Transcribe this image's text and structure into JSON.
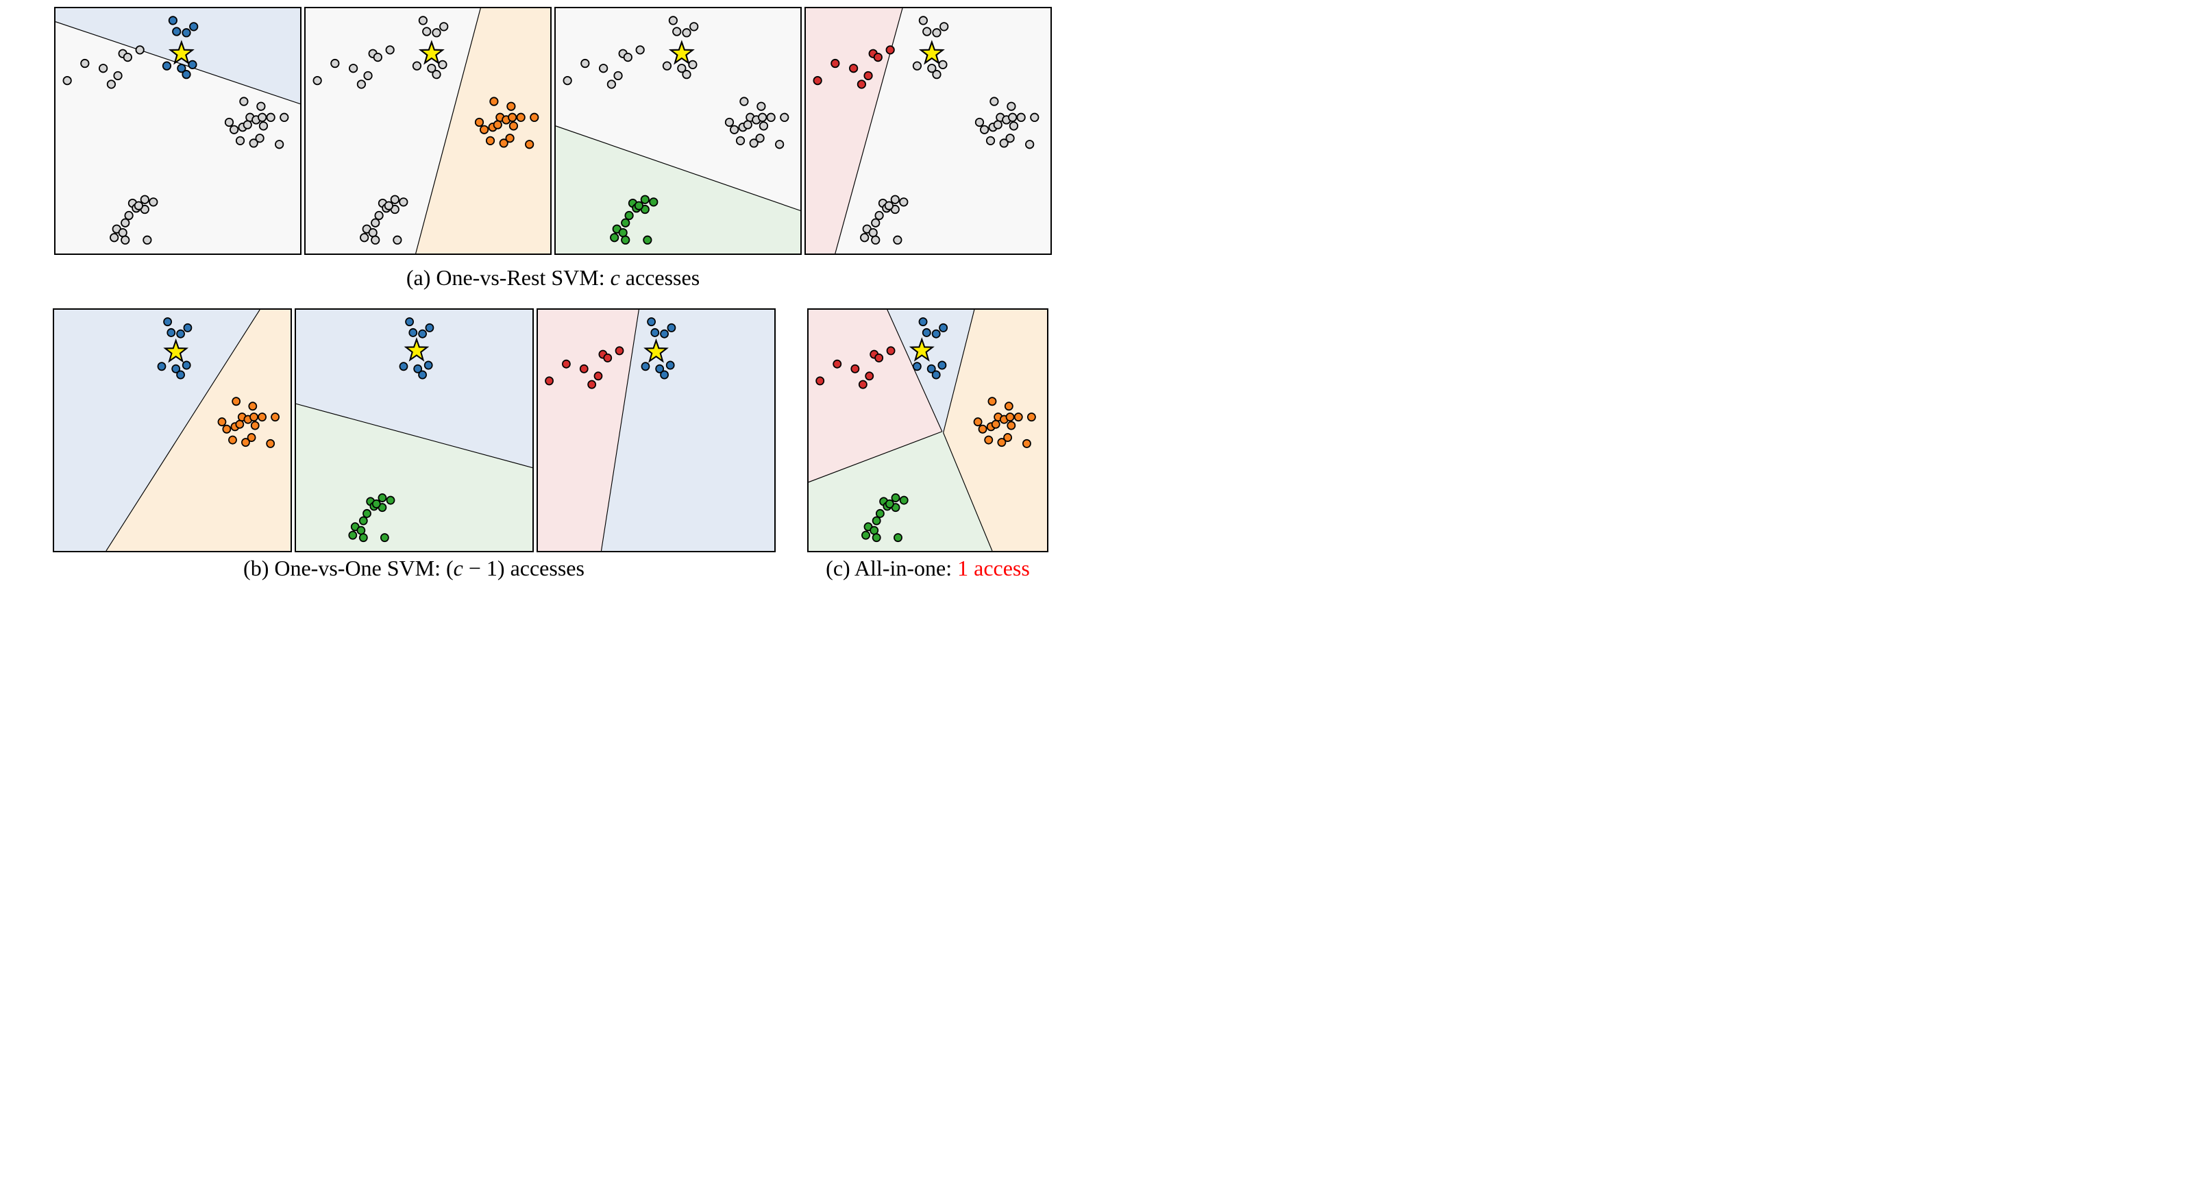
{
  "colors": {
    "point": {
      "blue": "#2e75b4",
      "orange": "#f8821f",
      "green": "#2fa42f",
      "red": "#d62f2f",
      "gray": "#d4d4d4"
    },
    "region": {
      "blue": "#e3eaf4",
      "orange": "#fdeeda",
      "green": "#e7f2e6",
      "red": "#f9e6e6",
      "none": "#f8f8f8"
    },
    "star_fill": "#ffee00",
    "outline": "#000000",
    "caption_highlight": "#ff0000"
  },
  "style": {
    "dot_radius": 1.6,
    "dot_stroke": 0.5,
    "line_stroke": 0.33,
    "star_outer": 4.7,
    "star_inner": 1.9,
    "star_stroke": 0.6
  },
  "chart_data": {
    "type": "scatter",
    "coordinate_system": "percent of each panel, x rightward, y downward",
    "clusters": {
      "top": [
        [
          48,
          5
        ],
        [
          49.5,
          9.5
        ],
        [
          53.5,
          10
        ],
        [
          56.5,
          7.5
        ],
        [
          45.5,
          23.5
        ],
        [
          51.5,
          24.5
        ],
        [
          56,
          23
        ],
        [
          53.5,
          27
        ]
      ],
      "left": [
        [
          4.8,
          29.5
        ],
        [
          12,
          22.5
        ],
        [
          19.5,
          24.5
        ],
        [
          25.5,
          27.5
        ],
        [
          22.8,
          31
        ],
        [
          27.5,
          18.5
        ],
        [
          29.5,
          20
        ],
        [
          34.5,
          17
        ]
      ],
      "right": [
        [
          77,
          38
        ],
        [
          84,
          40
        ],
        [
          71,
          46.5
        ],
        [
          73,
          49.5
        ],
        [
          76.5,
          48.5
        ],
        [
          79.5,
          44.5
        ],
        [
          82,
          45.5
        ],
        [
          84.5,
          44.5
        ],
        [
          88,
          44.5
        ],
        [
          85,
          48
        ],
        [
          93.5,
          44.5
        ],
        [
          75.5,
          54
        ],
        [
          81,
          55
        ],
        [
          83.5,
          53
        ],
        [
          91.5,
          55.5
        ],
        [
          78.5,
          47.5
        ]
      ],
      "bottom": [
        [
          31.5,
          79.5
        ],
        [
          36.5,
          78
        ],
        [
          40,
          79
        ],
        [
          33,
          81.5
        ],
        [
          36.5,
          82
        ],
        [
          34,
          80.5
        ],
        [
          30,
          84.5
        ],
        [
          28.5,
          87.5
        ],
        [
          25,
          90
        ],
        [
          27.5,
          91.5
        ],
        [
          24,
          93.5
        ],
        [
          28.5,
          94.5
        ],
        [
          37.5,
          94.5
        ]
      ]
    },
    "panels": [
      {
        "id": "a1",
        "group": "a",
        "name": "one-vs-rest-blue",
        "regions": [
          {
            "color": "blue",
            "pts": [
              [
                0,
                0
              ],
              [
                100,
                0
              ],
              [
                100,
                39
              ],
              [
                0,
                5.5
              ]
            ]
          }
        ],
        "lines": [
          [
            0,
            5.5,
            100,
            39
          ]
        ],
        "dots": [
          {
            "cluster": "top",
            "color": "blue"
          },
          {
            "cluster": "left",
            "color": "gray"
          },
          {
            "cluster": "right",
            "color": "gray"
          },
          {
            "cluster": "bottom",
            "color": "gray"
          }
        ],
        "star": [
          51.5,
          18.5
        ]
      },
      {
        "id": "a2",
        "group": "a",
        "name": "one-vs-rest-orange",
        "regions": [
          {
            "color": "orange",
            "pts": [
              [
                71.5,
                0
              ],
              [
                100,
                0
              ],
              [
                100,
                100
              ],
              [
                45,
                100
              ]
            ]
          }
        ],
        "lines": [
          [
            71.5,
            0,
            45,
            100
          ]
        ],
        "dots": [
          {
            "cluster": "top",
            "color": "gray"
          },
          {
            "cluster": "left",
            "color": "gray"
          },
          {
            "cluster": "right",
            "color": "orange"
          },
          {
            "cluster": "bottom",
            "color": "gray"
          }
        ],
        "star": [
          51.5,
          18.5
        ]
      },
      {
        "id": "a3",
        "group": "a",
        "name": "one-vs-rest-green",
        "regions": [
          {
            "color": "green",
            "pts": [
              [
                0,
                48
              ],
              [
                100,
                82.5
              ],
              [
                100,
                100
              ],
              [
                0,
                100
              ]
            ]
          }
        ],
        "lines": [
          [
            0,
            48,
            100,
            82.5
          ]
        ],
        "dots": [
          {
            "cluster": "top",
            "color": "gray"
          },
          {
            "cluster": "left",
            "color": "gray"
          },
          {
            "cluster": "right",
            "color": "gray"
          },
          {
            "cluster": "bottom",
            "color": "green"
          }
        ],
        "star": [
          51.5,
          18.5
        ]
      },
      {
        "id": "a4",
        "group": "a",
        "name": "one-vs-rest-red",
        "regions": [
          {
            "color": "red",
            "pts": [
              [
                0,
                0
              ],
              [
                39.5,
                0
              ],
              [
                12,
                100
              ],
              [
                0,
                100
              ]
            ]
          }
        ],
        "lines": [
          [
            39.5,
            0,
            12,
            100
          ]
        ],
        "dots": [
          {
            "cluster": "top",
            "color": "gray"
          },
          {
            "cluster": "left",
            "color": "red"
          },
          {
            "cluster": "right",
            "color": "gray"
          },
          {
            "cluster": "bottom",
            "color": "gray"
          }
        ],
        "star": [
          51.5,
          18.5
        ]
      },
      {
        "id": "b1",
        "group": "b",
        "name": "one-vs-one-blue-vs-orange",
        "regions": [
          {
            "color": "blue",
            "pts": [
              [
                0,
                0
              ],
              [
                87,
                0
              ],
              [
                22,
                100
              ],
              [
                0,
                100
              ]
            ]
          },
          {
            "color": "orange",
            "pts": [
              [
                87,
                0
              ],
              [
                100,
                0
              ],
              [
                100,
                100
              ],
              [
                22,
                100
              ]
            ]
          }
        ],
        "lines": [
          [
            87,
            0,
            22,
            100
          ]
        ],
        "dots": [
          {
            "cluster": "top",
            "color": "blue"
          },
          {
            "cluster": "right",
            "color": "orange"
          }
        ],
        "star": [
          51.5,
          17.5
        ]
      },
      {
        "id": "b2",
        "group": "b",
        "name": "one-vs-one-blue-vs-green",
        "regions": [
          {
            "color": "blue",
            "pts": [
              [
                0,
                0
              ],
              [
                100,
                0
              ],
              [
                100,
                65.5
              ],
              [
                0,
                39
              ]
            ]
          },
          {
            "color": "green",
            "pts": [
              [
                0,
                39
              ],
              [
                100,
                65.5
              ],
              [
                100,
                100
              ],
              [
                0,
                100
              ]
            ]
          }
        ],
        "lines": [
          [
            0,
            39,
            100,
            65.5
          ]
        ],
        "dots": [
          {
            "cluster": "top",
            "color": "blue"
          },
          {
            "cluster": "bottom",
            "color": "green"
          }
        ],
        "star": [
          51,
          17
        ]
      },
      {
        "id": "b3",
        "group": "b",
        "name": "one-vs-one-red-vs-blue",
        "regions": [
          {
            "color": "red",
            "pts": [
              [
                0,
                0
              ],
              [
                42.7,
                0
              ],
              [
                26.8,
                100
              ],
              [
                0,
                100
              ]
            ]
          },
          {
            "color": "blue",
            "pts": [
              [
                42.7,
                0
              ],
              [
                100,
                0
              ],
              [
                100,
                100
              ],
              [
                26.8,
                100
              ]
            ]
          }
        ],
        "lines": [
          [
            42.7,
            0,
            26.8,
            100
          ]
        ],
        "dots": [
          {
            "cluster": "left",
            "color": "red"
          },
          {
            "cluster": "top",
            "color": "blue"
          }
        ],
        "star": [
          50,
          17.5
        ]
      },
      {
        "id": "c1",
        "group": "c",
        "name": "all-in-one",
        "regions": [
          {
            "color": "red",
            "pts": [
              [
                0,
                0
              ],
              [
                33,
                0
              ],
              [
                56,
                50.5
              ],
              [
                0,
                71.5
              ]
            ]
          },
          {
            "color": "blue",
            "pts": [
              [
                33,
                0
              ],
              [
                69.5,
                0
              ],
              [
                56.5,
                51
              ]
            ]
          },
          {
            "color": "orange",
            "pts": [
              [
                69.5,
                0
              ],
              [
                100,
                0
              ],
              [
                100,
                100
              ],
              [
                77,
                100
              ],
              [
                56.5,
                51
              ]
            ]
          },
          {
            "color": "green",
            "pts": [
              [
                0,
                71.5
              ],
              [
                56,
                50.5
              ],
              [
                56.5,
                51
              ],
              [
                77,
                100
              ],
              [
                0,
                100
              ]
            ]
          }
        ],
        "lines": [
          [
            33,
            0,
            56,
            50.5
          ],
          [
            69.5,
            0,
            56.5,
            51
          ],
          [
            56,
            50.5,
            0,
            71.5
          ],
          [
            56.5,
            51,
            77,
            100
          ]
        ],
        "dots": [
          {
            "cluster": "left",
            "color": "red"
          },
          {
            "cluster": "top",
            "color": "blue"
          },
          {
            "cluster": "right",
            "color": "orange"
          },
          {
            "cluster": "bottom",
            "color": "green"
          }
        ],
        "star": [
          47.5,
          17
        ]
      }
    ]
  },
  "captions": {
    "a": {
      "parts": [
        {
          "text": "(a) One-vs-Rest SVM: ",
          "style": "normal"
        },
        {
          "text": "c",
          "style": "italic"
        },
        {
          "text": " accesses",
          "style": "normal"
        }
      ]
    },
    "b": {
      "parts": [
        {
          "text": "(b) One-vs-One SVM: (",
          "style": "normal"
        },
        {
          "text": "c",
          "style": "italic"
        },
        {
          "text": " − 1) accesses",
          "style": "normal"
        }
      ]
    },
    "c": {
      "parts": [
        {
          "text": "(c) All-in-one: ",
          "style": "normal"
        },
        {
          "text": "1 access",
          "style": "red"
        }
      ]
    }
  }
}
